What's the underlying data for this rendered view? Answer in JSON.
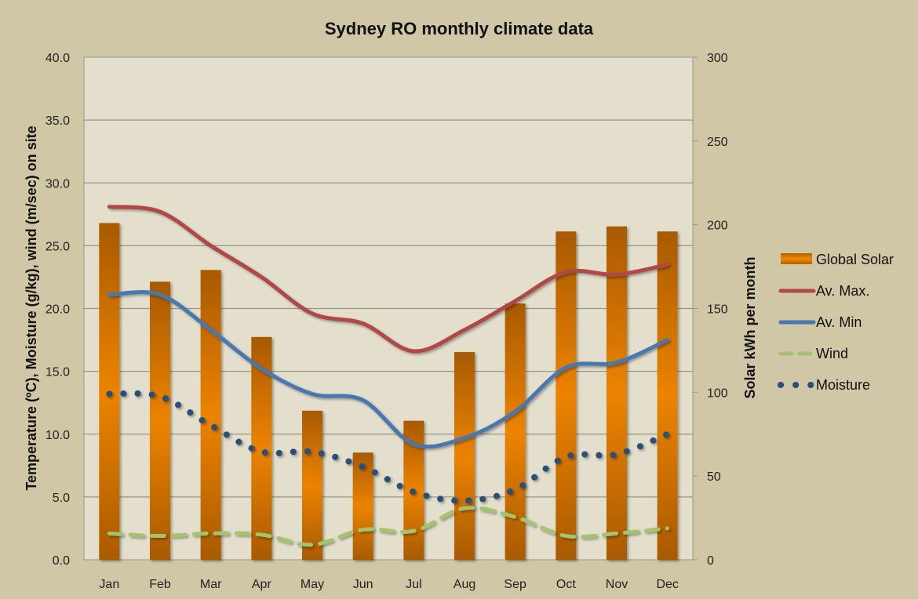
{
  "chart_data": {
    "type": "bar",
    "title": "Sydney RO monthly climate data",
    "xlabel": "",
    "ylabel": "Temperature (ºC), Moisture (g/kg), wind (m/sec) on site",
    "y2label": "Solar kWh per month",
    "categories": [
      "Jan",
      "Feb",
      "Mar",
      "Apr",
      "May",
      "Jun",
      "Jul",
      "Aug",
      "Sep",
      "Oct",
      "Nov",
      "Dec"
    ],
    "ylim": [
      0,
      40
    ],
    "y2lim": [
      0,
      300
    ],
    "yticks": [
      "0.0",
      "5.0",
      "10.0",
      "15.0",
      "20.0",
      "25.0",
      "30.0",
      "35.0",
      "40.0"
    ],
    "y2ticks": [
      "0",
      "50",
      "100",
      "150",
      "200",
      "250",
      "300"
    ],
    "grid": true,
    "legend_position": "right",
    "series": [
      {
        "name": "Global Solar",
        "type": "bar",
        "axis": "right",
        "color": "#e07c00",
        "values": [
          201,
          166,
          173,
          133,
          89,
          64,
          83,
          124,
          153,
          196,
          199,
          196
        ]
      },
      {
        "name": "Av. Max.",
        "type": "line",
        "axis": "left",
        "color": "#b04a45",
        "style": "solid",
        "values": [
          28.1,
          27.7,
          25.0,
          22.5,
          19.6,
          18.8,
          16.6,
          18.3,
          20.6,
          22.9,
          22.7,
          23.5
        ]
      },
      {
        "name": "Av. Min",
        "type": "line",
        "axis": "left",
        "color": "#4a78b0",
        "style": "solid",
        "values": [
          21.1,
          21.1,
          18.3,
          15.2,
          13.2,
          12.7,
          9.2,
          9.7,
          11.8,
          15.3,
          15.7,
          17.5
        ]
      },
      {
        "name": "Wind",
        "type": "line",
        "axis": "left",
        "color": "#a3c46c",
        "style": "dashed",
        "values": [
          2.1,
          1.9,
          2.1,
          2.0,
          1.2,
          2.4,
          2.3,
          4.1,
          3.4,
          1.9,
          2.1,
          2.5
        ]
      },
      {
        "name": "Moisture",
        "type": "line",
        "axis": "left",
        "color": "#2b4f7a",
        "style": "dotted",
        "values": [
          13.2,
          13.0,
          10.7,
          8.6,
          8.6,
          7.4,
          5.4,
          4.7,
          5.6,
          8.2,
          8.4,
          10.0
        ]
      }
    ]
  }
}
